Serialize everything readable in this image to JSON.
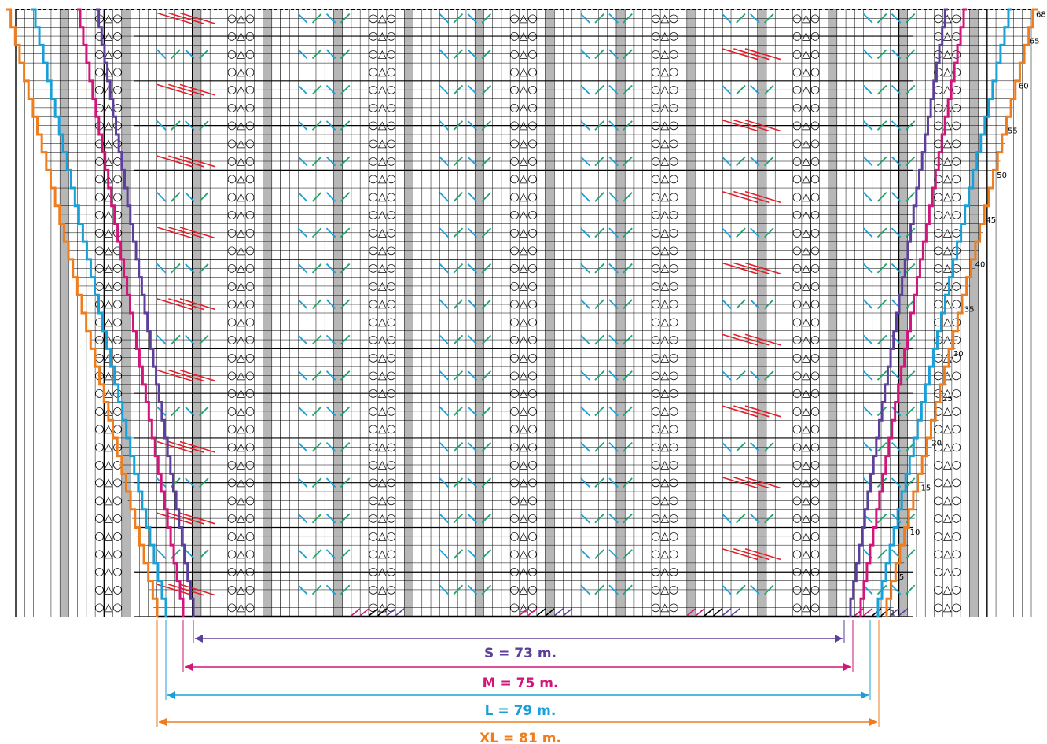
{
  "row_labels": [
    "1",
    "5",
    "10",
    "15",
    "20",
    "25",
    "30",
    "35",
    "40",
    "45",
    "50",
    "55",
    "60",
    "65",
    "68"
  ],
  "sizes": [
    {
      "label": "S = 73 m.",
      "color": "#5b3f9b"
    },
    {
      "label": "M = 75 m.",
      "color": "#d1157a"
    },
    {
      "label": "L = 79 m.",
      "color": "#1aa0d8"
    },
    {
      "label": "XL = 81 m.",
      "color": "#ef7d1e"
    }
  ],
  "colors": {
    "grid": "#000000",
    "gray_column": "#b7b7b7",
    "red_stitch": "#e0202b",
    "green_stitch": "#1ea36b",
    "blue_stitch": "#1aa0d8",
    "purple_stitch": "#5b3f9b",
    "magenta_stitch": "#d1157a"
  },
  "symbols": {
    "yarn_over": "○",
    "double_decrease": "△"
  }
}
